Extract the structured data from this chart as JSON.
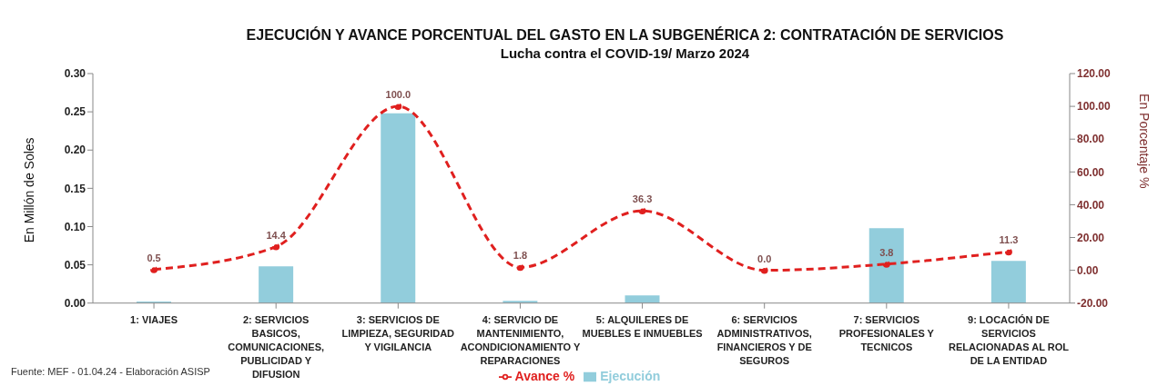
{
  "chart_data": {
    "type": "bar",
    "title": "EJECUCIÓN Y AVANCE PORCENTUAL DEL GASTO EN LA SUBGENÉRICA 2: CONTRATACIÓN DE SERVICIOS",
    "subtitle": "Lucha contra el COVID-19/ Marzo 2024",
    "ylabel": "En Millón de Soles",
    "y2label": "En Porcentaje %",
    "categories": [
      "1: VIAJES",
      "2: SERVICIOS BASICOS, COMUNICACIONES, PUBLICIDAD Y DIFUSION",
      "3: SERVICIOS DE LIMPIEZA, SEGURIDAD Y VIGILANCIA",
      "4: SERVICIO DE MANTENIMIENTO, ACONDICIONAMIENTO Y REPARACIONES",
      "5: ALQUILERES DE MUEBLES E INMUEBLES",
      "6: SERVICIOS ADMINISTRATIVOS, FINANCIEROS Y DE SEGUROS",
      "7: SERVICIOS PROFESIONALES Y TECNICOS",
      "9: LOCACIÓN DE SERVICIOS RELACIONADAS AL ROL DE LA ENTIDAD"
    ],
    "series": [
      {
        "name": "Ejecución",
        "color": "#92cddc",
        "values": [
          0.002,
          0.048,
          0.248,
          0.003,
          0.01,
          0,
          0.098,
          0.055
        ]
      },
      {
        "name": "Avance %",
        "type": "line",
        "axis": "y2",
        "color": "#e0201f",
        "values": [
          0.5,
          14.4,
          100.0,
          1.8,
          36.3,
          0.0,
          3.8,
          11.3
        ],
        "value_labels": [
          "0.5",
          "14.4",
          "100.0",
          "1.8",
          "36.3",
          "0.0",
          "3.8",
          "11.3"
        ]
      }
    ],
    "ylim": [
      0,
      0.3
    ],
    "yticks": [
      {
        "value": 0,
        "label": "0.00"
      },
      {
        "value": 0.05,
        "label": "0.05"
      },
      {
        "value": 0.1,
        "label": "0.10"
      },
      {
        "value": 0.15,
        "label": "0.15"
      },
      {
        "value": 0.2,
        "label": "0.20"
      },
      {
        "value": 0.25,
        "label": "0.25"
      },
      {
        "value": 0.3,
        "label": "0.30"
      }
    ],
    "y2lim": [
      -20,
      120
    ],
    "y2ticks": [
      {
        "value": -20,
        "label": "-20.00"
      },
      {
        "value": 0,
        "label": "0.00"
      },
      {
        "value": 20,
        "label": "20.00"
      },
      {
        "value": 40,
        "label": "40.00"
      },
      {
        "value": 60,
        "label": "60.00"
      },
      {
        "value": 80,
        "label": "80.00"
      },
      {
        "value": 100,
        "label": "100.00"
      },
      {
        "value": 120,
        "label": "120.00"
      }
    ],
    "grid": false,
    "legend": "bottom",
    "marker": "circle",
    "line_style": "dashed",
    "annotations": [
      "Fuente: MEF - 01.04.24 - Elaboración ASISP"
    ]
  }
}
